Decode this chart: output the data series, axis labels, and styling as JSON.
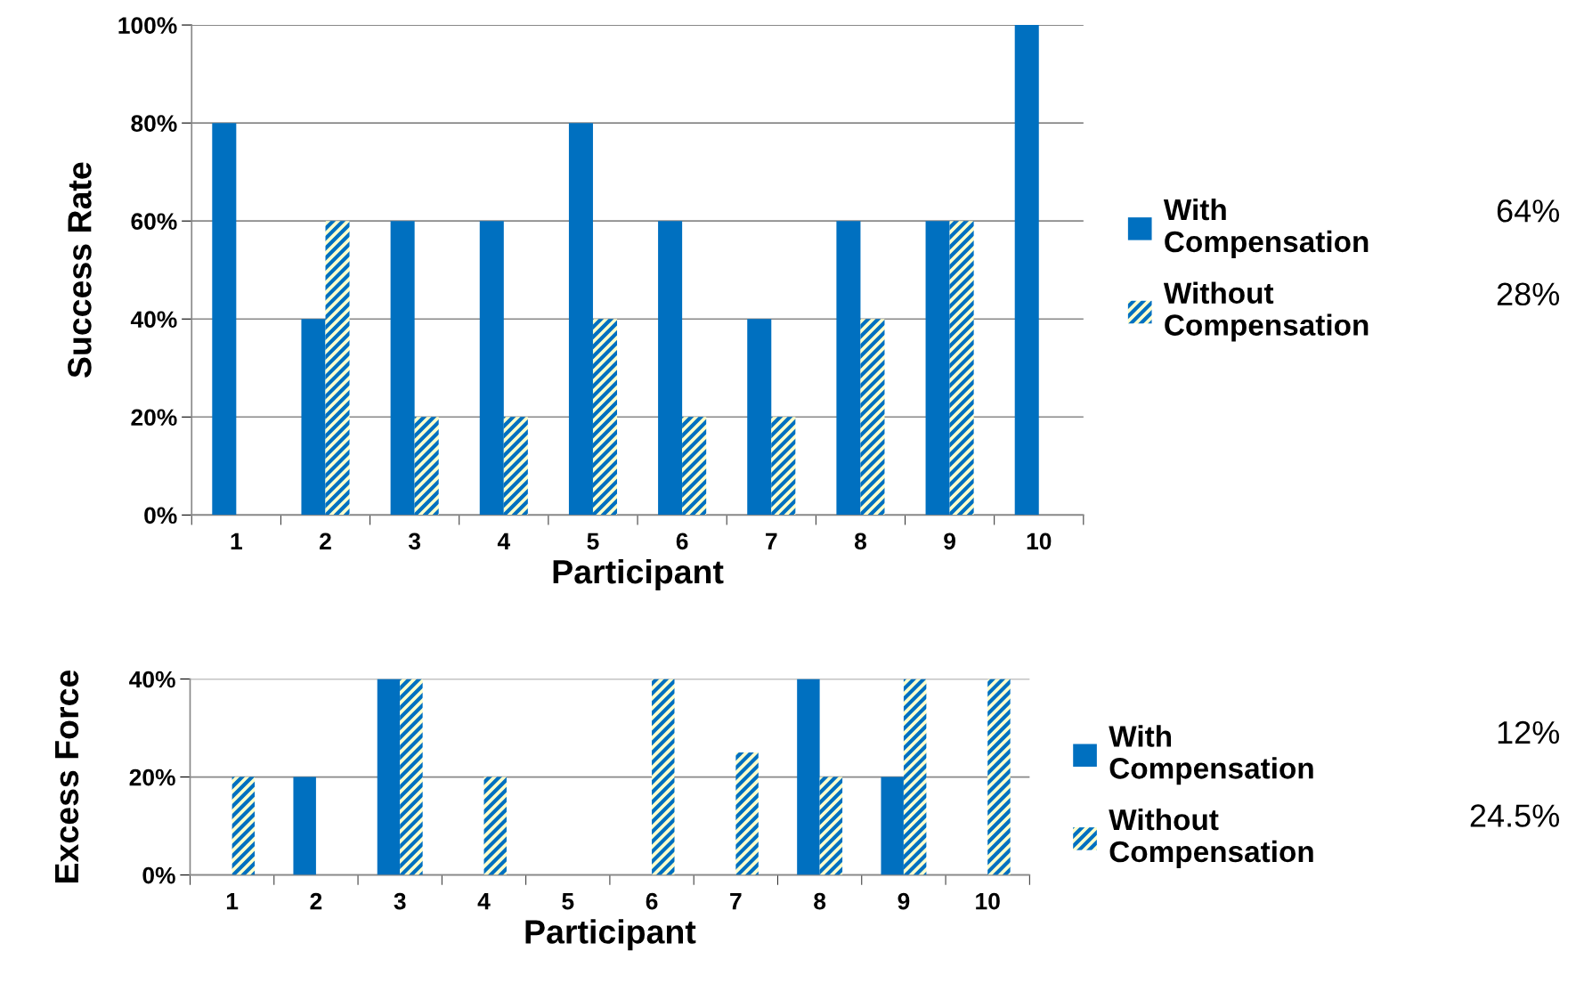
{
  "chart_data": [
    {
      "type": "bar",
      "ylabel": "Success Rate",
      "xlabel": "Participant",
      "categories": [
        "1",
        "2",
        "3",
        "4",
        "5",
        "6",
        "7",
        "8",
        "9",
        "10"
      ],
      "series": [
        {
          "name": "With\nCompensation",
          "color": "#0070c0",
          "values": [
            80,
            40,
            60,
            60,
            80,
            60,
            40,
            60,
            60,
            100
          ]
        },
        {
          "name": "Without\nCompensation",
          "color": "#0070c0",
          "values": [
            0,
            60,
            20,
            20,
            40,
            20,
            20,
            40,
            60,
            0
          ]
        }
      ],
      "ylim": [
        0,
        100
      ],
      "yticks": [
        {
          "value": 0,
          "label": "0%"
        },
        {
          "value": 20,
          "label": "20%"
        },
        {
          "value": 40,
          "label": "40%"
        },
        {
          "value": 60,
          "label": "60%"
        },
        {
          "value": 80,
          "label": "80%"
        },
        {
          "value": 100,
          "label": "100%"
        }
      ],
      "grid": "y",
      "legend": "right",
      "annotations": [
        "64%",
        "28%"
      ]
    },
    {
      "type": "bar",
      "ylabel": "Excess Force",
      "xlabel": "Participant",
      "categories": [
        "1",
        "2",
        "3",
        "4",
        "5",
        "6",
        "7",
        "8",
        "9",
        "10"
      ],
      "series": [
        {
          "name": "With\nCompensation",
          "color": "#0070c0",
          "values": [
            0,
            20,
            40,
            0,
            0,
            0,
            0,
            40,
            20,
            0
          ]
        },
        {
          "name": "Without\nCompensation",
          "color": "#0070c0",
          "values": [
            20,
            0,
            40,
            20,
            0,
            40,
            25,
            20,
            40,
            40
          ]
        }
      ],
      "ylim": [
        0,
        40
      ],
      "yticks": [
        {
          "value": 0,
          "label": "0%"
        },
        {
          "value": 20,
          "label": "20%"
        },
        {
          "value": 40,
          "label": "40%"
        }
      ],
      "grid": "y",
      "legend": "right",
      "annotations": [
        "12%",
        "24.5%"
      ]
    }
  ]
}
